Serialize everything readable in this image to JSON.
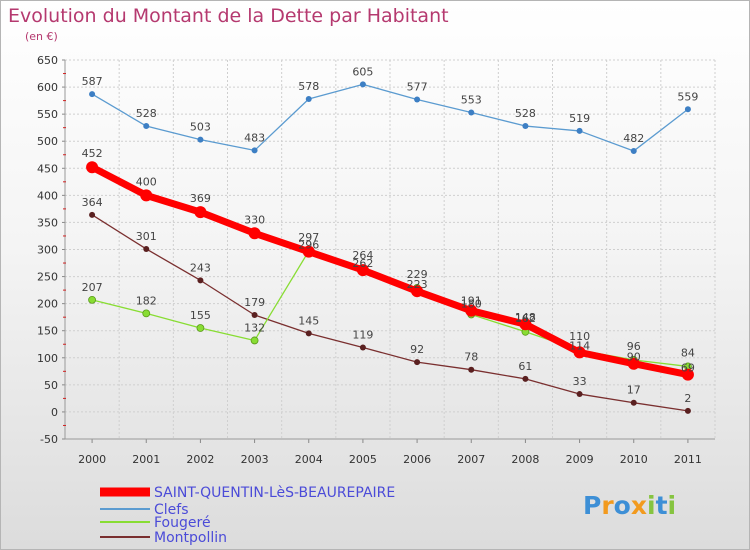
{
  "chart_data": {
    "type": "line",
    "title": "Evolution du Montant de la Dette par Habitant",
    "subtitle": "(en €)",
    "x": [
      "2000",
      "2001",
      "2002",
      "2003",
      "2004",
      "2005",
      "2006",
      "2007",
      "2008",
      "2009",
      "2010",
      "2011"
    ],
    "ylim": [
      -50,
      650
    ],
    "yticks": [
      650,
      600,
      550,
      500,
      450,
      400,
      350,
      300,
      250,
      200,
      150,
      100,
      50,
      0,
      -50
    ],
    "grid": true,
    "legend_position": "bottom-left",
    "series": [
      {
        "name": "SAINT-QUENTIN-LèS-BEAUREPAIRE",
        "color": "#ff0000",
        "values": [
          452,
          400,
          369,
          330,
          296,
          262,
          223,
          187,
          162,
          110,
          89,
          69
        ]
      },
      {
        "name": "Clefs",
        "color": "#5b9bd0",
        "values": [
          587,
          528,
          503,
          483,
          578,
          605,
          577,
          553,
          528,
          519,
          482,
          559
        ]
      },
      {
        "name": "Fougeré",
        "color": "#88dd33",
        "values": [
          207,
          182,
          155,
          132,
          297,
          264,
          229,
          180,
          148,
          114,
          96,
          84
        ]
      },
      {
        "name": "Montpollin",
        "color": "#7a2f2f",
        "values": [
          364,
          301,
          243,
          179,
          145,
          119,
          92,
          78,
          61,
          33,
          17,
          2
        ]
      }
    ],
    "data_labels": [
      [
        "452",
        "400",
        "369",
        "330",
        "",
        "",
        "",
        "",
        "",
        "",
        "",
        ""
      ],
      [
        "587",
        "528",
        "503",
        "483",
        "578",
        "605",
        "577",
        "553",
        "528",
        "519",
        "482",
        "559"
      ],
      [
        "207",
        "182",
        "155",
        "132",
        "297",
        "264",
        "229",
        "191",
        "162",
        "110",
        "96",
        "84"
      ],
      [
        "364",
        "301",
        "243",
        "179",
        "145",
        "119",
        "92",
        "78",
        "61",
        "33",
        "17",
        "2"
      ],
      [
        "",
        "",
        "",
        "",
        "296",
        "262",
        "223",
        "180",
        "148",
        "114",
        "90",
        "69"
      ]
    ]
  },
  "logo": {
    "letters": [
      "P",
      "r",
      "o",
      "x",
      "i",
      "t",
      "i"
    ],
    "colors": [
      "#3d8fd6",
      "#f29a1e",
      "#3d8fd6",
      "#f29a1e",
      "#86c440",
      "#3d8fd6",
      "#86c440"
    ]
  }
}
